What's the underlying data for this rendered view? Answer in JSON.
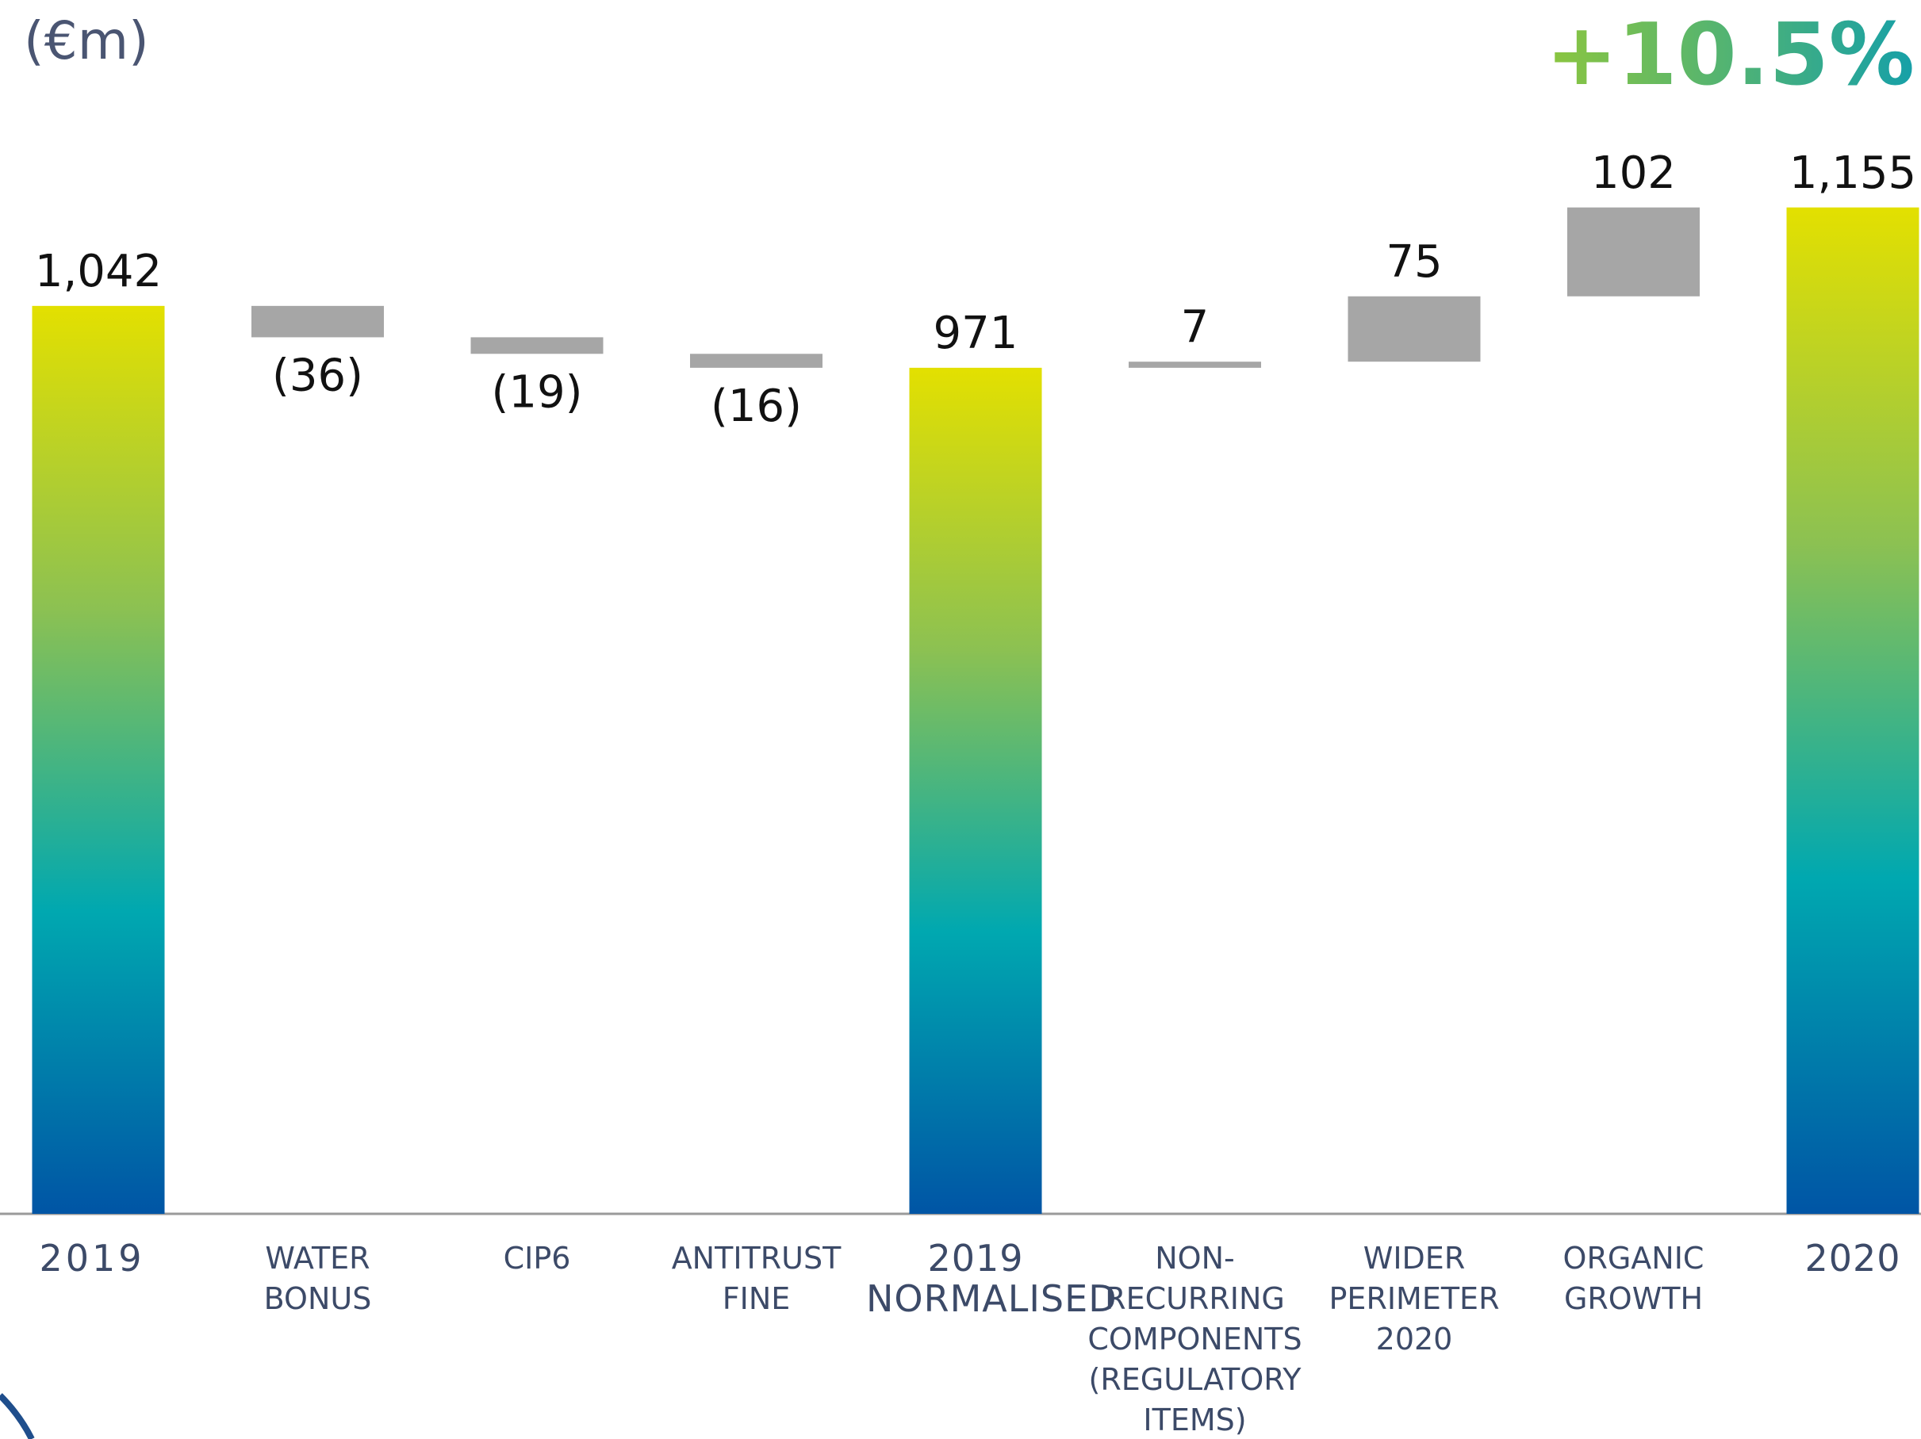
{
  "chart_data": {
    "type": "waterfall",
    "unit_label": "(€m)",
    "annotation": "+10.5%",
    "categories": [
      "2019",
      "WATER\nBONUS",
      "CIP6",
      "ANTITRUST\nFINE",
      "2019\nNORMALISED",
      "NON-\nRECURRING\nCOMPONENTS\n(REGULATORY\nITEMS)",
      "WIDER\nPERIMETER\n2020",
      "ORGANIC\nGROWTH",
      "2020"
    ],
    "values": [
      1042,
      -36,
      -19,
      -16,
      971,
      7,
      75,
      102,
      1155
    ],
    "value_labels": [
      "1,042",
      "(36)",
      "(19)",
      "(16)",
      "971",
      "7",
      "75",
      "102",
      "1,155"
    ],
    "totals": [
      true,
      false,
      false,
      false,
      true,
      false,
      false,
      false,
      true
    ],
    "color": "#a6a6a6",
    "total_colors": [
      "#e3e000",
      "#8cc152",
      "#00a8b0",
      "#0055a5"
    ],
    "annotation_colors": [
      "#8cc63f",
      "#16a0a8"
    ]
  }
}
